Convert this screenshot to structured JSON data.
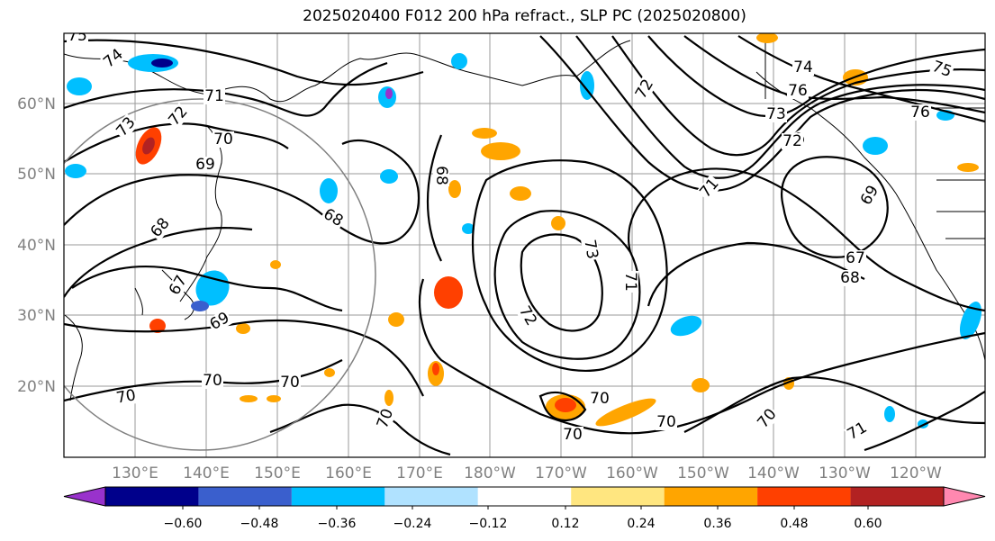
{
  "title": "2025020400 F012 200 hPa refract., SLP PC (2025020800)",
  "lat_labels": [
    "60°N",
    "50°N",
    "40°N",
    "30°N",
    "20°N"
  ],
  "lon_labels": [
    "130°E",
    "140°E",
    "150°E",
    "160°E",
    "170°E",
    "180°W",
    "170°W",
    "160°W",
    "150°W",
    "140°W",
    "130°W",
    "120°W"
  ],
  "contour_labels": [
    "75",
    "74",
    "73",
    "72",
    "71",
    "70",
    "69",
    "68",
    "67",
    "68",
    "69",
    "70",
    "70",
    "70",
    "70",
    "70",
    "70",
    "68",
    "68",
    "69",
    "70",
    "71",
    "72",
    "73",
    "71",
    "72",
    "73",
    "74",
    "75",
    "76",
    "76",
    "75",
    "72",
    "69",
    "67",
    "71",
    "68",
    "70",
    "70",
    "71"
  ],
  "colorbar": {
    "ticks": [
      "−0.60",
      "−0.48",
      "−0.36",
      "−0.24",
      "−0.12",
      "0.12",
      "0.24",
      "0.36",
      "0.48",
      "0.60"
    ],
    "colors": [
      "#9932cc",
      "#00008b",
      "#3a5fcd",
      "#00bfff",
      "#b0e2ff",
      "#ffffff",
      "#ffe680",
      "#ffa500",
      "#ff4000",
      "#b22222",
      "#ff88b0"
    ]
  }
}
